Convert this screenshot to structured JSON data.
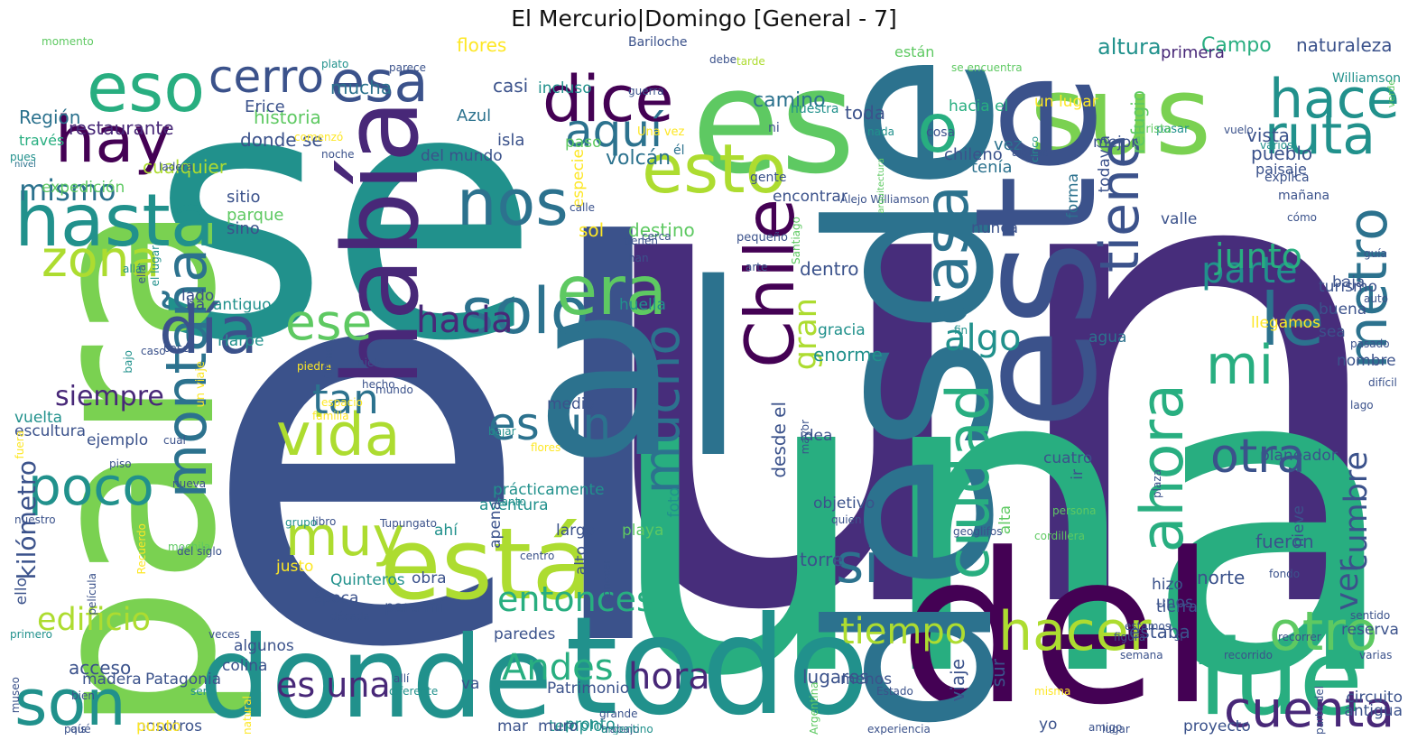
{
  "title": "El Mercurio|Domingo [General - 7]",
  "colors": {
    "dark-purple": "#440154",
    "purple": "#472d7b",
    "indigo": "#3b528b",
    "blue": "#2c728e",
    "teal": "#21918c",
    "green-teal": "#28ae80",
    "green": "#5ec962",
    "lime": "#addc30",
    "yellow": "#fde725"
  },
  "words": [
    {
      "text": "el",
      "color": "#3b528b"
    },
    {
      "text": "se",
      "color": "#21918c"
    },
    {
      "text": "un",
      "color": "#472d7b"
    },
    {
      "text": "una",
      "color": "#28ae80"
    },
    {
      "text": "del",
      "color": "#440154"
    },
    {
      "text": "es",
      "color": "#5ec962"
    },
    {
      "text": "para",
      "color": "#7ad151"
    },
    {
      "text": "donde",
      "color": "#21918c"
    },
    {
      "text": "todo",
      "color": "#21918c"
    },
    {
      "text": "al",
      "color": "#2c728e"
    },
    {
      "text": "sus",
      "color": "#7ad151"
    },
    {
      "text": "está",
      "color": "#addc30"
    },
    {
      "text": "desde",
      "color": "#2c728e"
    },
    {
      "text": "este",
      "color": "#3b528b"
    },
    {
      "text": "fue",
      "color": "#28ae80"
    },
    {
      "text": "hay",
      "color": "#440154"
    },
    {
      "text": "hasta",
      "color": "#21918c"
    },
    {
      "text": "eso",
      "color": "#28ae80"
    },
    {
      "text": "esa",
      "color": "#3b528b"
    },
    {
      "text": "dice",
      "color": "#440154"
    },
    {
      "text": "o",
      "color": "#28ae80"
    },
    {
      "text": "había",
      "color": "#482878"
    },
    {
      "text": "esto",
      "color": "#addc30"
    },
    {
      "text": "nos",
      "color": "#2c728e"
    },
    {
      "text": "solo",
      "color": "#2c728e"
    },
    {
      "text": "era",
      "color": "#5ec962"
    },
    {
      "text": "vida",
      "color": "#addc30"
    },
    {
      "text": "muy",
      "color": "#addc30"
    },
    {
      "text": "son",
      "color": "#21918c"
    },
    {
      "text": "poco",
      "color": "#21918c"
    },
    {
      "text": "montaña",
      "color": "#2c728e"
    },
    {
      "text": "día",
      "color": "#3b528b"
    },
    {
      "text": "zona",
      "color": "#addc30"
    },
    {
      "text": "cerro",
      "color": "#3b528b"
    },
    {
      "text": "Chile",
      "color": "#440154"
    },
    {
      "text": "ciudad",
      "color": "#28ae80"
    },
    {
      "text": "casa",
      "color": "#2c728e"
    },
    {
      "text": "hacer",
      "color": "#addc30"
    },
    {
      "text": "ahora",
      "color": "#28ae80"
    },
    {
      "text": "tiene",
      "color": "#3b528b"
    },
    {
      "text": "le",
      "color": "#2c728e"
    },
    {
      "text": "mi",
      "color": "#28ae80"
    },
    {
      "text": "hace",
      "color": "#21918c"
    },
    {
      "text": "ruta",
      "color": "#21918c"
    },
    {
      "text": "metro",
      "color": "#2c728e"
    },
    {
      "text": "otro",
      "color": "#5ec962"
    },
    {
      "text": "cuenta",
      "color": "#482878"
    },
    {
      "text": "otra",
      "color": "#3b528b"
    },
    {
      "text": "mucho",
      "color": "#2c728e"
    },
    {
      "text": "es un",
      "color": "#2c728e"
    },
    {
      "text": "si",
      "color": "#2c728e"
    },
    {
      "text": "aquí",
      "color": "#2c728e"
    },
    {
      "text": "ese",
      "color": "#5ec962"
    },
    {
      "text": "hacia",
      "color": "#482878"
    },
    {
      "text": "tan",
      "color": "#2c728e"
    },
    {
      "text": "entonces",
      "color": "#28ae80"
    },
    {
      "text": "Andes",
      "color": "#28ae80"
    },
    {
      "text": "hora",
      "color": "#482878"
    },
    {
      "text": "es una",
      "color": "#482878"
    },
    {
      "text": "tiempo",
      "color": "#addc30"
    },
    {
      "text": "algo",
      "color": "#21918c"
    },
    {
      "text": "parte",
      "color": "#21918c"
    },
    {
      "text": "junto",
      "color": "#28ae80"
    },
    {
      "text": "gran",
      "color": "#addc30"
    },
    {
      "text": "ver",
      "color": "#3b528b"
    },
    {
      "text": "cumbre",
      "color": "#3b528b"
    },
    {
      "text": "mismo",
      "color": "#2c728e"
    },
    {
      "text": "siempre",
      "color": "#482878"
    },
    {
      "text": "kilómetro",
      "color": "#3b528b"
    },
    {
      "text": "edificio",
      "color": "#addc30"
    },
    {
      "text": "Región",
      "color": "#2c728e"
    },
    {
      "text": "restaurante",
      "color": "#482878"
    },
    {
      "text": "través",
      "color": "#28ae80"
    },
    {
      "text": "pues",
      "color": "#21918c"
    },
    {
      "text": "nivel",
      "color": "#2c728e"
    },
    {
      "text": "momento",
      "color": "#5ec962"
    },
    {
      "text": "expedición",
      "color": "#5ec962"
    },
    {
      "text": "altura",
      "color": "#21918c"
    },
    {
      "text": "Campo",
      "color": "#28ae80"
    },
    {
      "text": "primera",
      "color": "#482878"
    },
    {
      "text": "naturaleza",
      "color": "#3b528b"
    },
    {
      "text": "Williamson",
      "color": "#21918c"
    },
    {
      "text": "están",
      "color": "#5ec962"
    },
    {
      "text": "se encuentra",
      "color": "#5ec962"
    },
    {
      "text": "toda",
      "color": "#3b528b"
    },
    {
      "text": "camino",
      "color": "#2c728e"
    },
    {
      "text": "nuestra",
      "color": "#21918c"
    },
    {
      "text": "hacia el",
      "color": "#28ae80"
    },
    {
      "text": "un lugar",
      "color": "#fde725"
    },
    {
      "text": "vez",
      "color": "#2c728e"
    },
    {
      "text": "cosa",
      "color": "#3b528b"
    },
    {
      "text": "nada",
      "color": "#21918c"
    },
    {
      "text": "alguna",
      "color": "#3b528b"
    },
    {
      "text": "cinco",
      "color": "#21918c"
    },
    {
      "text": "refugio",
      "color": "#5ec962"
    },
    {
      "text": "todavía",
      "color": "#3b528b"
    },
    {
      "text": "mejor",
      "color": "#3b528b"
    },
    {
      "text": "pasar",
      "color": "#21918c"
    },
    {
      "text": "turista",
      "color": "#5ec962"
    },
    {
      "text": "vuelo",
      "color": "#3b528b"
    },
    {
      "text": "varios",
      "color": "#21918c"
    },
    {
      "text": "vista",
      "color": "#3b528b"
    },
    {
      "text": "pueblo",
      "color": "#3b528b"
    },
    {
      "text": "paisaje",
      "color": "#3b528b"
    },
    {
      "text": "explica",
      "color": "#3b528b"
    },
    {
      "text": "mañana",
      "color": "#3b528b"
    },
    {
      "text": "cómo",
      "color": "#3b528b"
    },
    {
      "text": "verde",
      "color": "#5ec962"
    },
    {
      "text": "historia",
      "color": "#5ec962"
    },
    {
      "text": "Erice",
      "color": "#3b528b"
    },
    {
      "text": "donde se",
      "color": "#3b528b"
    },
    {
      "text": "del mundo",
      "color": "#3b528b"
    },
    {
      "text": "isla",
      "color": "#3b528b"
    },
    {
      "text": "Azul",
      "color": "#2c728e"
    },
    {
      "text": "incluso",
      "color": "#21918c"
    },
    {
      "text": "guerra",
      "color": "#3b528b"
    },
    {
      "text": "casi",
      "color": "#3b528b"
    },
    {
      "text": "flores",
      "color": "#fde725"
    },
    {
      "text": "mucha",
      "color": "#2c728e"
    },
    {
      "text": "plato",
      "color": "#21918c"
    },
    {
      "text": "parece",
      "color": "#3b528b"
    },
    {
      "text": "Bariloche",
      "color": "#3b528b"
    },
    {
      "text": "debe",
      "color": "#3b528b"
    },
    {
      "text": "tarde",
      "color": "#addc30"
    },
    {
      "text": "cualquier",
      "color": "#addc30"
    },
    {
      "text": "ladera",
      "color": "#3b528b"
    },
    {
      "text": "comenzó",
      "color": "#fde725"
    },
    {
      "text": "noche",
      "color": "#3b528b"
    },
    {
      "text": "sitio",
      "color": "#3b528b"
    },
    {
      "text": "parque",
      "color": "#5ec962"
    },
    {
      "text": "sino",
      "color": "#3b528b"
    },
    {
      "text": "paso",
      "color": "#5ec962"
    },
    {
      "text": "especie",
      "color": "#fde725"
    },
    {
      "text": "Una vez",
      "color": "#fde725"
    },
    {
      "text": "él",
      "color": "#2c728e"
    },
    {
      "text": "volcán",
      "color": "#2c728e"
    },
    {
      "text": "ni",
      "color": "#3b528b"
    },
    {
      "text": "chileno",
      "color": "#3b528b"
    },
    {
      "text": "tenía",
      "color": "#2c728e"
    },
    {
      "text": "encontrar",
      "color": "#3b528b"
    },
    {
      "text": "gente",
      "color": "#3b528b"
    },
    {
      "text": "Alejo Williamson",
      "color": "#3b528b"
    },
    {
      "text": "arquitectura",
      "color": "#5ec962"
    },
    {
      "text": "forma",
      "color": "#2c728e"
    },
    {
      "text": "sol",
      "color": "#fde725"
    },
    {
      "text": "calle",
      "color": "#3b528b"
    },
    {
      "text": "destino",
      "color": "#5ec962"
    },
    {
      "text": "tienen",
      "color": "#3b528b"
    },
    {
      "text": "cerca",
      "color": "#3b528b"
    },
    {
      "text": "nunca",
      "color": "#3b528b"
    },
    {
      "text": "valle",
      "color": "#3b528b"
    },
    {
      "text": "pequeño",
      "color": "#3b528b"
    },
    {
      "text": "Santiago",
      "color": "#5ec962"
    },
    {
      "text": "dentro",
      "color": "#3b528b"
    },
    {
      "text": "arte",
      "color": "#3b528b"
    },
    {
      "text": "turismo",
      "color": "#3b528b"
    },
    {
      "text": "guía",
      "color": "#3b528b"
    },
    {
      "text": "baja",
      "color": "#3b528b"
    },
    {
      "text": "buena",
      "color": "#3b528b"
    },
    {
      "text": "auto",
      "color": "#3b528b"
    },
    {
      "text": "sea",
      "color": "#3b528b"
    },
    {
      "text": "pasado",
      "color": "#3b528b"
    },
    {
      "text": "difícil",
      "color": "#3b528b"
    },
    {
      "text": "lago",
      "color": "#3b528b"
    },
    {
      "text": "llegamos",
      "color": "#fde725"
    },
    {
      "text": "nombre",
      "color": "#3b528b"
    },
    {
      "text": "agua",
      "color": "#2c728e"
    },
    {
      "text": "fin",
      "color": "#21918c"
    },
    {
      "text": "gracia",
      "color": "#21918c"
    },
    {
      "text": "enorme",
      "color": "#21918c"
    },
    {
      "text": "allá",
      "color": "#21918c"
    },
    {
      "text": "ella",
      "color": "#3b528b"
    },
    {
      "text": "el lugar",
      "color": "#21918c"
    },
    {
      "text": "lado",
      "color": "#3b528b"
    },
    {
      "text": "ha",
      "color": "#3b528b"
    },
    {
      "text": "han",
      "color": "#3b528b"
    },
    {
      "text": "huella",
      "color": "#21918c"
    },
    {
      "text": "antiguo",
      "color": "#21918c"
    },
    {
      "text": "Harpe",
      "color": "#21918c"
    },
    {
      "text": "base",
      "color": "#3b528b"
    },
    {
      "text": "un viaje",
      "color": "#fde725"
    },
    {
      "text": "bajo",
      "color": "#21918c"
    },
    {
      "text": "caso",
      "color": "#3b528b"
    },
    {
      "text": "piedra",
      "color": "#fde725"
    },
    {
      "text": "último",
      "color": "#3b528b"
    },
    {
      "text": "hielo",
      "color": "#3b528b"
    },
    {
      "text": "hecho",
      "color": "#3b528b"
    },
    {
      "text": "medio",
      "color": "#3b528b"
    },
    {
      "text": "mundo",
      "color": "#3b528b"
    },
    {
      "text": "vuelta",
      "color": "#21918c"
    },
    {
      "text": "escultura",
      "color": "#3b528b"
    },
    {
      "text": "ejemplo",
      "color": "#3b528b"
    },
    {
      "text": "familia",
      "color": "#fde725"
    },
    {
      "text": "espacio",
      "color": "#fde725"
    },
    {
      "text": "cual",
      "color": "#3b528b"
    },
    {
      "text": "fuera",
      "color": "#fde725"
    },
    {
      "text": "piso",
      "color": "#3b528b"
    },
    {
      "text": "bajar",
      "color": "#21918c"
    },
    {
      "text": "flores",
      "color": "#fde725"
    },
    {
      "text": "nueva",
      "color": "#3b528b"
    },
    {
      "text": "prácticamente",
      "color": "#21918c"
    },
    {
      "text": "tanto",
      "color": "#21918c"
    },
    {
      "text": "aventura",
      "color": "#21918c"
    },
    {
      "text": "apena",
      "color": "#3b528b"
    },
    {
      "text": "nuestro",
      "color": "#3b528b"
    },
    {
      "text": "grupo",
      "color": "#21918c"
    },
    {
      "text": "libro",
      "color": "#3b528b"
    },
    {
      "text": "Tupungato",
      "color": "#3b528b"
    },
    {
      "text": "ahí",
      "color": "#21918c"
    },
    {
      "text": "largo",
      "color": "#3b528b"
    },
    {
      "text": "playa",
      "color": "#5ec962"
    },
    {
      "text": "foto",
      "color": "#21918c"
    },
    {
      "text": "alto",
      "color": "#3b528b"
    },
    {
      "text": "centro",
      "color": "#3b528b"
    },
    {
      "text": "mochila",
      "color": "#5ec962"
    },
    {
      "text": "del siglo",
      "color": "#3b528b"
    },
    {
      "text": "justo",
      "color": "#fde725"
    },
    {
      "text": "Quinteros",
      "color": "#21918c"
    },
    {
      "text": "obra",
      "color": "#3b528b"
    },
    {
      "text": "ello",
      "color": "#3b528b"
    },
    {
      "text": "película",
      "color": "#3b528b"
    },
    {
      "text": "Recuerdo",
      "color": "#fde725"
    },
    {
      "text": "época",
      "color": "#3b528b"
    },
    {
      "text": "para mí",
      "color": "#3b528b"
    },
    {
      "text": "conocer",
      "color": "#3b528b"
    },
    {
      "text": "década",
      "color": "#3b528b"
    },
    {
      "text": "primero",
      "color": "#21918c"
    },
    {
      "text": "veces",
      "color": "#3b528b"
    },
    {
      "text": "colina",
      "color": "#3b528b"
    },
    {
      "text": "algunos",
      "color": "#3b528b"
    },
    {
      "text": "paredes",
      "color": "#3b528b"
    },
    {
      "text": "acceso",
      "color": "#3b528b"
    },
    {
      "text": "madera",
      "color": "#3b528b"
    },
    {
      "text": "Patagonia",
      "color": "#3b528b"
    },
    {
      "text": "allí",
      "color": "#3b528b"
    },
    {
      "text": "diferente",
      "color": "#21918c"
    },
    {
      "text": "sería",
      "color": "#21918c"
    },
    {
      "text": "va",
      "color": "#3b528b"
    },
    {
      "text": "Patrimonio",
      "color": "#3b528b"
    },
    {
      "text": "museo",
      "color": "#3b528b"
    },
    {
      "text": "bien",
      "color": "#3b528b"
    },
    {
      "text": "qué",
      "color": "#3b528b"
    },
    {
      "text": "país",
      "color": "#3b528b"
    },
    {
      "text": "nosotros",
      "color": "#3b528b"
    },
    {
      "text": "punto",
      "color": "#fde725"
    },
    {
      "text": "templo",
      "color": "#21918c"
    },
    {
      "text": "pronto",
      "color": "#21918c"
    },
    {
      "text": "mar",
      "color": "#3b528b"
    },
    {
      "text": "muro",
      "color": "#3b528b"
    },
    {
      "text": "grande",
      "color": "#3b528b"
    },
    {
      "text": "trabajo",
      "color": "#3b528b"
    },
    {
      "text": "argentino",
      "color": "#21918c"
    },
    {
      "text": "natural",
      "color": "#fde725"
    },
    {
      "text": "lugares",
      "color": "#3b528b"
    },
    {
      "text": "menos",
      "color": "#3b528b"
    },
    {
      "text": "Argentina",
      "color": "#5ec962"
    },
    {
      "text": "Estado",
      "color": "#3b528b"
    },
    {
      "text": "experiencia",
      "color": "#3b528b"
    },
    {
      "text": "viaje",
      "color": "#3b528b"
    },
    {
      "text": "sur",
      "color": "#3b528b"
    },
    {
      "text": "misma",
      "color": "#fde725"
    },
    {
      "text": "yo",
      "color": "#3b528b"
    },
    {
      "text": "proyecto",
      "color": "#3b528b"
    },
    {
      "text": "lugar",
      "color": "#3b528b"
    },
    {
      "text": "estaba",
      "color": "#3b528b"
    },
    {
      "text": "desde el",
      "color": "#3b528b"
    },
    {
      "text": "torre",
      "color": "#3b528b"
    },
    {
      "text": "objetivo",
      "color": "#3b528b"
    },
    {
      "text": "idea",
      "color": "#3b528b"
    },
    {
      "text": "mayor",
      "color": "#3b528b"
    },
    {
      "text": "quien",
      "color": "#3b528b"
    },
    {
      "text": "geoglifos",
      "color": "#3b528b"
    },
    {
      "text": "cordillera",
      "color": "#5ec962"
    },
    {
      "text": "persona",
      "color": "#5ec962"
    },
    {
      "text": "alta",
      "color": "#5ec962"
    },
    {
      "text": "ir",
      "color": "#3b528b"
    },
    {
      "text": "unos",
      "color": "#3b528b"
    },
    {
      "text": "norte",
      "color": "#3b528b"
    },
    {
      "text": "fueron",
      "color": "#3b528b"
    },
    {
      "text": "nieve",
      "color": "#3b528b"
    },
    {
      "text": "cuatro",
      "color": "#3b528b"
    },
    {
      "text": "planeador",
      "color": "#3b528b"
    },
    {
      "text": "hizo",
      "color": "#3b528b"
    },
    {
      "text": "tierra",
      "color": "#3b528b"
    },
    {
      "text": "fondo",
      "color": "#3b528b"
    },
    {
      "text": "varias",
      "color": "#3b528b"
    },
    {
      "text": "reserva",
      "color": "#3b528b"
    },
    {
      "text": "sentido",
      "color": "#3b528b"
    },
    {
      "text": "recorrer",
      "color": "#3b528b"
    },
    {
      "text": "recorrido",
      "color": "#3b528b"
    },
    {
      "text": "estamos",
      "color": "#3b528b"
    },
    {
      "text": "figura",
      "color": "#3b528b"
    },
    {
      "text": "sí",
      "color": "#3b528b"
    },
    {
      "text": "semana",
      "color": "#3b528b"
    },
    {
      "text": "circuito",
      "color": "#3b528b"
    },
    {
      "text": "antigua",
      "color": "#3b528b"
    },
    {
      "text": "parte del",
      "color": "#3b528b"
    },
    {
      "text": "amigo",
      "color": "#3b528b"
    },
    {
      "text": "plaza",
      "color": "#3b528b"
    }
  ]
}
